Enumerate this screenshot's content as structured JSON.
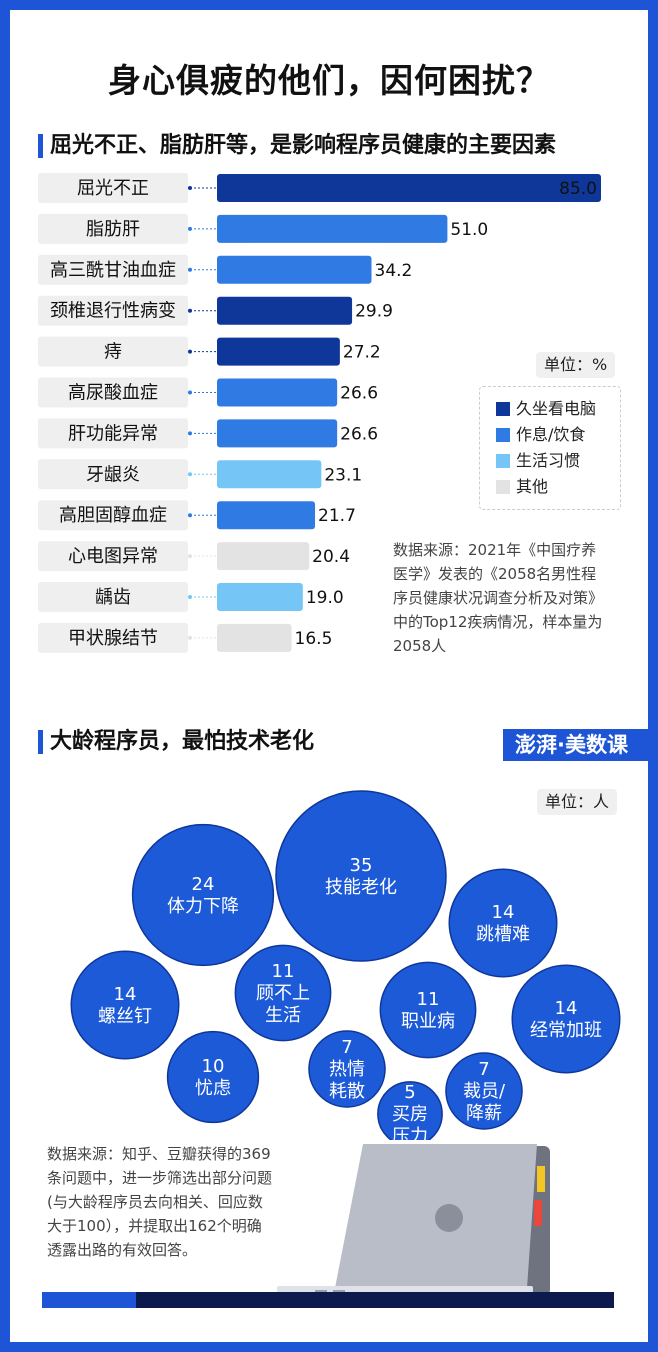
{
  "title": "身心俱疲的他们，因何困扰？",
  "section1": {
    "heading": "屈光不正、脂肪肝等，是影响程序员健康的主要因素",
    "unit": "单位：%",
    "legend": [
      {
        "label": "久坐看电脑",
        "color": "#0f3699"
      },
      {
        "label": "作息/饮食",
        "color": "#2f7be3"
      },
      {
        "label": "生活习惯",
        "color": "#75c6f6"
      },
      {
        "label": "其他",
        "color": "#e3e3e3"
      }
    ],
    "note": [
      "数据来源：2021年《中国疗养",
      "医学》发表的《2058名男性程",
      "序员健康状况调查分析及对策》",
      "中的Top12疾病情况，样本量为",
      "2058人"
    ]
  },
  "chart_data": [
    {
      "type": "bar",
      "orientation": "horizontal",
      "categories": [
        "屈光不正",
        "脂肪肝",
        "高三酰甘油血症",
        "颈椎退行性病变",
        "痔",
        "高尿酸血症",
        "肝功能异常",
        "牙龈炎",
        "高胆固醇血症",
        "心电图异常",
        "龋齿",
        "甲状腺结节"
      ],
      "values": [
        85.0,
        51.0,
        34.2,
        29.9,
        27.2,
        26.6,
        26.6,
        23.1,
        21.7,
        20.4,
        19.0,
        16.5
      ],
      "value_labels": [
        "85.0",
        "51.0",
        "34.2",
        "29.9",
        "27.2",
        "26.6",
        "26.6",
        "23.1",
        "21.7",
        "20.4",
        "19.0",
        "16.5"
      ],
      "groups": [
        "久坐看电脑",
        "作息/饮食",
        "作息/饮食",
        "久坐看电脑",
        "久坐看电脑",
        "作息/饮食",
        "作息/饮食",
        "生活习惯",
        "作息/饮食",
        "其他",
        "生活习惯",
        "其他"
      ],
      "xlim": [
        0,
        85
      ]
    },
    {
      "type": "bubble",
      "items": [
        {
          "label": "体力下降",
          "value": 24
        },
        {
          "label": "技能老化",
          "value": 35
        },
        {
          "label": "跳槽难",
          "value": 14
        },
        {
          "label": "螺丝钉",
          "value": 14
        },
        {
          "label": "顾不上生活",
          "value": 11
        },
        {
          "label": "职业病",
          "value": 11
        },
        {
          "label": "经常加班",
          "value": 14
        },
        {
          "label": "忧虑",
          "value": 10
        },
        {
          "label": "热情耗散",
          "value": 7
        },
        {
          "label": "买房压力",
          "value": 5
        },
        {
          "label": "裁员/降薪",
          "value": 7
        }
      ]
    }
  ],
  "section2": {
    "heading": "大龄程序员，最怕技术老化",
    "unit": "单位：人",
    "brand": "澎湃·美数课",
    "note": [
      "数据来源：知乎、豆瓣获得的369",
      "条问题中，进一步筛选出部分问题",
      "(与大龄程序员去向相关、回应数",
      "大于100），并提取出162个明确",
      "透露出路的有效回答。"
    ]
  },
  "bubble_lines": [
    [
      "体力下降"
    ],
    [
      "技能老化"
    ],
    [
      "跳槽难"
    ],
    [
      "螺丝钉"
    ],
    [
      "顾不上",
      "生活"
    ],
    [
      "职业病"
    ],
    [
      "经常加班"
    ],
    [
      "忧虑"
    ],
    [
      "热情",
      "耗散"
    ],
    [
      "买房",
      "压力"
    ],
    [
      "裁员/",
      "降薪"
    ]
  ]
}
